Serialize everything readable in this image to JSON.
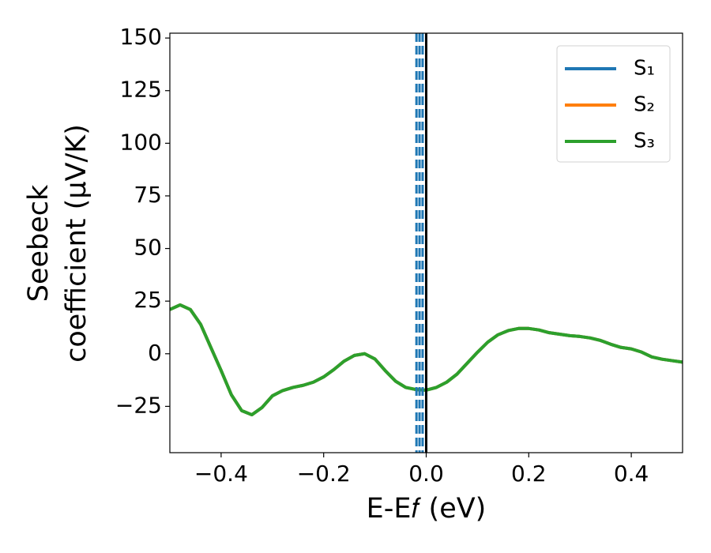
{
  "chart_data": {
    "type": "line",
    "x_label": "E-E𝑓 (eV)",
    "y_label": [
      "Seebeck",
      "coefficient  (μV/K)"
    ],
    "x": [
      -0.5,
      -0.48,
      -0.46,
      -0.44,
      -0.42,
      -0.4,
      -0.38,
      -0.36,
      -0.34,
      -0.32,
      -0.3,
      -0.28,
      -0.26,
      -0.24,
      -0.22,
      -0.2,
      -0.18,
      -0.16,
      -0.14,
      -0.12,
      -0.1,
      -0.08,
      -0.06,
      -0.04,
      -0.02,
      0,
      0.02,
      0.04,
      0.06,
      0.08,
      0.1,
      0.12,
      0.14,
      0.16,
      0.18,
      0.2,
      0.22,
      0.24,
      0.26,
      0.28,
      0.3,
      0.32,
      0.34,
      0.36,
      0.38,
      0.4,
      0.42,
      0.44,
      0.46,
      0.48,
      0.5
    ],
    "series": [
      {
        "name": "S₁",
        "color": "#1f77b4",
        "values": [
          21,
          23.2,
          21,
          14,
          3,
          -8,
          -19.5,
          -27,
          -29,
          -25.5,
          -20,
          -17.5,
          -16,
          -15,
          -13.5,
          -11,
          -7.5,
          -3.5,
          -0.8,
          0,
          -2.5,
          -8,
          -13,
          -16,
          -17,
          -17.3,
          -16,
          -13.5,
          -9.7,
          -4.5,
          0.7,
          5.5,
          9,
          11,
          12,
          12,
          11.3,
          10,
          9.3,
          8.6,
          8.2,
          7.5,
          6.3,
          4.5,
          3,
          2.3,
          0.8,
          -1.5,
          -2.6,
          -3.3,
          -4
        ]
      },
      {
        "name": "S₂",
        "color": "#ff7f0e",
        "values": [
          21,
          23.2,
          21,
          14,
          3,
          -8,
          -19.5,
          -27,
          -29,
          -25.5,
          -20,
          -17.5,
          -16,
          -15,
          -13.5,
          -11,
          -7.5,
          -3.5,
          -0.8,
          0,
          -2.5,
          -8,
          -13,
          -16,
          -17,
          -17.3,
          -16,
          -13.5,
          -9.7,
          -4.5,
          0.7,
          5.5,
          9,
          11,
          12,
          12,
          11.3,
          10,
          9.3,
          8.6,
          8.2,
          7.5,
          6.3,
          4.5,
          3,
          2.3,
          0.8,
          -1.5,
          -2.6,
          -3.3,
          -4
        ]
      },
      {
        "name": "S₃",
        "color": "#2ca02c",
        "values": [
          21,
          23.2,
          21,
          14,
          3,
          -8,
          -19.5,
          -27,
          -29,
          -25.5,
          -20,
          -17.5,
          -16,
          -15,
          -13.5,
          -11,
          -7.5,
          -3.5,
          -0.8,
          0,
          -2.5,
          -8,
          -13,
          -16,
          -17,
          -17.3,
          -16,
          -13.5,
          -9.7,
          -4.5,
          0.7,
          5.5,
          9,
          11,
          12,
          12,
          11.3,
          10,
          9.3,
          8.6,
          8.2,
          7.5,
          6.3,
          4.5,
          3,
          2.3,
          0.8,
          -1.5,
          -2.6,
          -3.3,
          -4
        ]
      }
    ],
    "vlines": [
      {
        "x": -0.019,
        "color": "#1f77b4",
        "style": "dashed"
      },
      {
        "x": -0.013,
        "color": "#1f77b4",
        "style": "dashed"
      },
      {
        "x": -0.007,
        "color": "#1f77b4",
        "style": "dashed"
      },
      {
        "x": 0,
        "color": "#000000",
        "style": "solid"
      }
    ],
    "xlim": [
      -0.5,
      0.5
    ],
    "ylim": [
      -47,
      152.3
    ],
    "xticks": [
      {
        "value": -0.4,
        "label": "−0.4"
      },
      {
        "value": -0.2,
        "label": "−0.2"
      },
      {
        "value": 0,
        "label": "0.0"
      },
      0.2,
      0.4
    ],
    "yticks": [
      {
        "value": -25,
        "label": "−25"
      },
      0,
      25,
      50,
      75,
      100,
      125,
      150
    ],
    "legend": "upper right",
    "grid": false
  }
}
